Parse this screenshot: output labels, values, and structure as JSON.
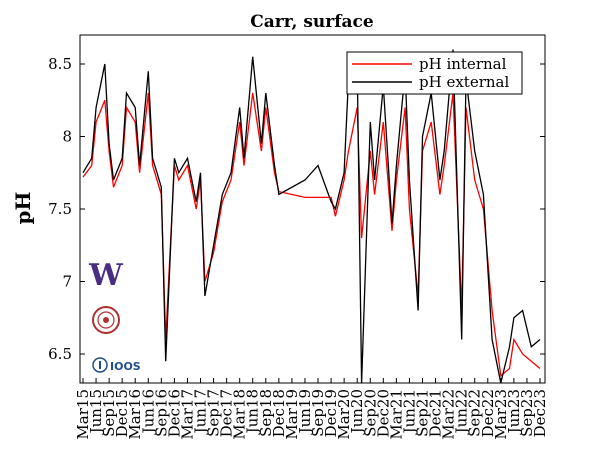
{
  "chart_data": {
    "type": "line",
    "title": "Carr, surface",
    "xlabel": "",
    "ylabel": "pH",
    "ylim": [
      6.3,
      8.7
    ],
    "yticks": [
      6.5,
      7,
      7.5,
      8,
      8.5
    ],
    "ytick_labels": [
      "6.5",
      "7",
      "7.5",
      "8",
      "8.5"
    ],
    "xtick_labels": [
      "Mar15",
      "Jun15",
      "Sep15",
      "Dec15",
      "Mar16",
      "Jun16",
      "Sep16",
      "Dec16",
      "Mar17",
      "Jun17",
      "Sep17",
      "Dec17",
      "Mar18",
      "Jun18",
      "Sep18",
      "Dec18",
      "Mar19",
      "Jun19",
      "Sep19",
      "Dec19",
      "Mar20",
      "Jun20",
      "Sep20",
      "Dec20",
      "Mar21",
      "Jun21",
      "Sep21",
      "Dec21",
      "Mar22",
      "Jun22",
      "Sep22",
      "Dec22",
      "Mar23",
      "Jun23",
      "Sep23",
      "Dec23"
    ],
    "legend_position": "top-right",
    "grid": false,
    "series": [
      {
        "name": "pH internal",
        "color": "#ff0000",
        "x": [
          "2015-03",
          "2015-05",
          "2015-06",
          "2015-08",
          "2015-09",
          "2015-10",
          "2015-12",
          "2016-01",
          "2016-03",
          "2016-04",
          "2016-06",
          "2016-07",
          "2016-08",
          "2016-09",
          "2016-10",
          "2016-12",
          "2017-01",
          "2017-03",
          "2017-05",
          "2017-06",
          "2017-07",
          "2017-09",
          "2017-11",
          "2018-01",
          "2018-03",
          "2018-04",
          "2018-06",
          "2018-08",
          "2018-09",
          "2018-11",
          "2018-12",
          "2019-06",
          "2019-09",
          "2019-12",
          "2020-01",
          "2020-03",
          "2020-04",
          "2020-06",
          "2020-07",
          "2020-09",
          "2020-10",
          "2020-12",
          "2021-02",
          "2021-03",
          "2021-05",
          "2021-06",
          "2021-08",
          "2021-09",
          "2021-11",
          "2022-01",
          "2022-02",
          "2022-04",
          "2022-06",
          "2022-07",
          "2022-09",
          "2022-11",
          "2023-01",
          "2023-03",
          "2023-05",
          "2023-06",
          "2023-08",
          "2023-10",
          "2023-12"
        ],
        "values": [
          7.72,
          7.8,
          8.1,
          8.25,
          7.9,
          7.65,
          7.8,
          8.2,
          8.1,
          7.75,
          8.3,
          7.8,
          7.7,
          7.6,
          6.6,
          7.8,
          7.7,
          7.8,
          7.5,
          7.7,
          7.0,
          7.2,
          7.55,
          7.7,
          8.1,
          7.8,
          8.3,
          7.9,
          8.2,
          7.75,
          7.62,
          7.58,
          7.58,
          7.58,
          7.45,
          7.7,
          7.9,
          8.2,
          7.3,
          7.9,
          7.6,
          8.1,
          7.35,
          7.7,
          8.2,
          7.5,
          6.9,
          7.9,
          8.1,
          7.6,
          7.8,
          8.3,
          6.8,
          8.2,
          7.7,
          7.5,
          6.8,
          6.35,
          6.4,
          6.6,
          6.5,
          6.45,
          6.4
        ]
      },
      {
        "name": "pH external",
        "color": "#000000",
        "x": [
          "2015-03",
          "2015-05",
          "2015-06",
          "2015-08",
          "2015-09",
          "2015-10",
          "2015-12",
          "2016-01",
          "2016-03",
          "2016-04",
          "2016-06",
          "2016-07",
          "2016-08",
          "2016-09",
          "2016-10",
          "2016-12",
          "2017-01",
          "2017-03",
          "2017-05",
          "2017-06",
          "2017-07",
          "2017-09",
          "2017-11",
          "2018-01",
          "2018-03",
          "2018-04",
          "2018-06",
          "2018-08",
          "2018-09",
          "2018-11",
          "2018-12",
          "2019-06",
          "2019-09",
          "2019-12",
          "2020-01",
          "2020-03",
          "2020-04",
          "2020-06",
          "2020-07",
          "2020-09",
          "2020-10",
          "2020-12",
          "2021-02",
          "2021-03",
          "2021-05",
          "2021-06",
          "2021-08",
          "2021-09",
          "2021-11",
          "2022-01",
          "2022-02",
          "2022-04",
          "2022-06",
          "2022-07",
          "2022-09",
          "2022-11",
          "2023-01",
          "2023-03",
          "2023-05",
          "2023-06",
          "2023-08",
          "2023-10",
          "2023-12"
        ],
        "values": [
          7.75,
          7.85,
          8.2,
          8.5,
          7.95,
          7.7,
          7.85,
          8.3,
          8.2,
          7.8,
          8.45,
          7.85,
          7.75,
          7.65,
          6.45,
          7.85,
          7.75,
          7.85,
          7.55,
          7.75,
          6.9,
          7.25,
          7.6,
          7.75,
          8.2,
          7.85,
          8.55,
          7.95,
          8.3,
          7.8,
          7.6,
          7.7,
          7.8,
          7.55,
          7.5,
          7.75,
          8.4,
          8.5,
          6.3,
          8.1,
          7.7,
          8.35,
          7.4,
          7.8,
          8.45,
          7.7,
          6.8,
          8.0,
          8.3,
          7.7,
          7.9,
          8.6,
          6.6,
          8.4,
          7.9,
          7.6,
          6.6,
          6.3,
          6.55,
          6.75,
          6.8,
          6.55,
          6.6
        ]
      }
    ]
  },
  "logos": [
    {
      "kind": "uw-logo",
      "text": "W",
      "color": "#4b2e83"
    },
    {
      "kind": "seal-logo",
      "color": "#b03030"
    },
    {
      "kind": "ioos-logo",
      "text": "IOOS",
      "color": "#1f4e8c"
    }
  ]
}
